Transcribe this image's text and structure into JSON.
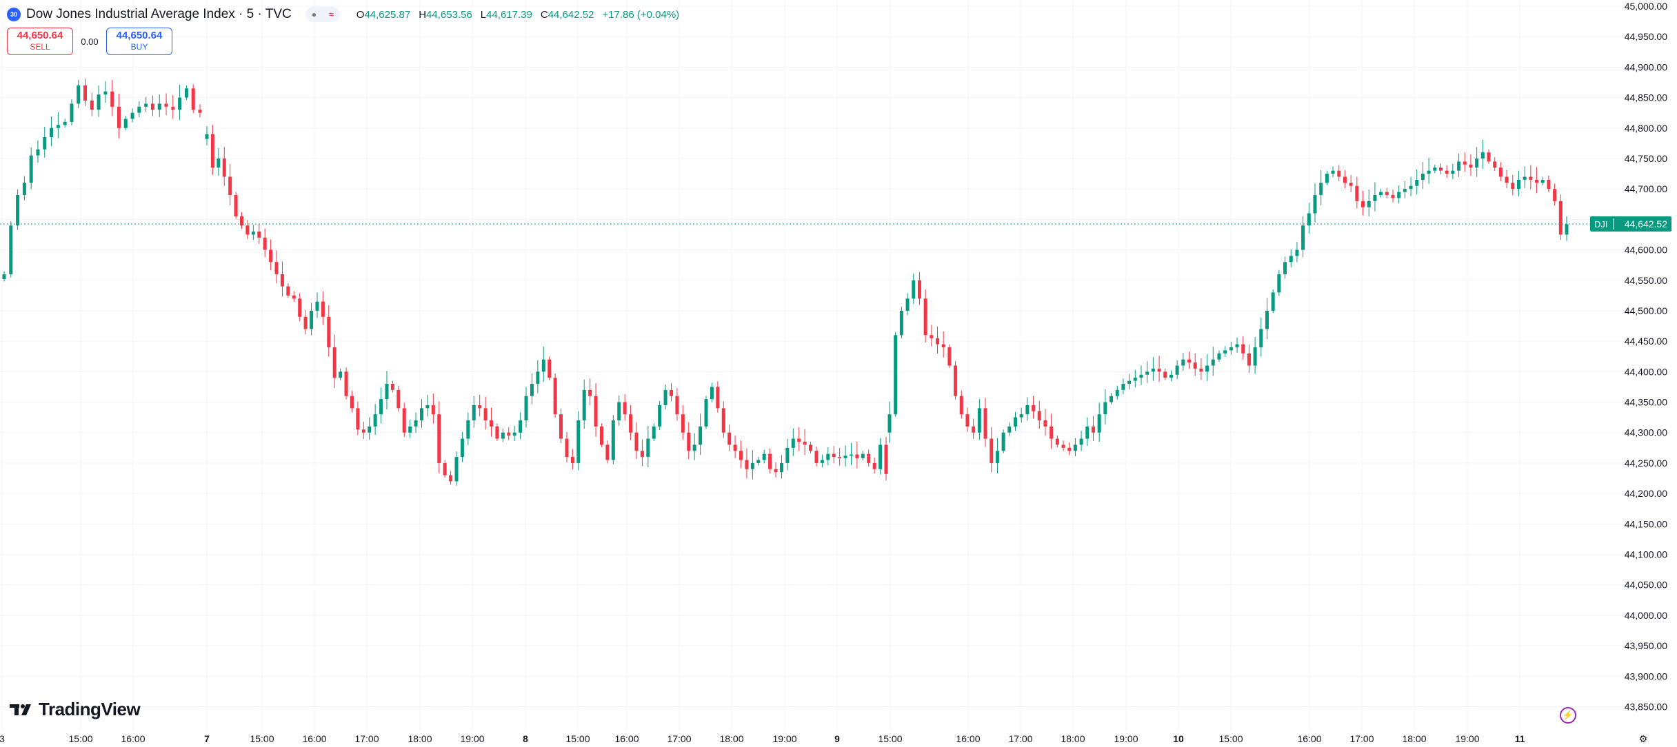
{
  "header": {
    "badge": "30",
    "title": "Dow Jones Industrial Average Index · 5 · TVC",
    "ohlc": {
      "o_label": "O",
      "o": "44,625.87",
      "h_label": "H",
      "h": "44,653.56",
      "l_label": "L",
      "l": "44,617.39",
      "c_label": "C",
      "c": "44,642.52",
      "change": "+17.86 (+0.04%)"
    }
  },
  "trade": {
    "sell_price": "44,650.64",
    "sell_label": "SELL",
    "spread": "0.00",
    "buy_price": "44,650.64",
    "buy_label": "BUY"
  },
  "brand": {
    "name": "TradingView"
  },
  "colors": {
    "up": "#089981",
    "down": "#f23645",
    "last_price": "#089981",
    "grid": "#f0f3fa"
  },
  "chart_data": {
    "type": "candlestick",
    "symbol_tag": "DJI",
    "last_price": 44642.52,
    "ylim": [
      43820,
      45000
    ],
    "y_ticks": [
      "45,000.00",
      "44,950.00",
      "44,900.00",
      "44,850.00",
      "44,800.00",
      "44,750.00",
      "44,700.00",
      "44,650.00",
      "44,600.00",
      "44,550.00",
      "44,500.00",
      "44,450.00",
      "44,400.00",
      "44,350.00",
      "44,300.00",
      "44,250.00",
      "44,200.00",
      "44,150.00",
      "44,100.00",
      "44,050.00",
      "44,000.00",
      "43,950.00",
      "43,900.00",
      "43,850.00"
    ],
    "x_ticks": [
      "3",
      "15:00",
      "16:00",
      "7",
      "15:00",
      "16:00",
      "17:00",
      "18:00",
      "19:00",
      "8",
      "15:00",
      "16:00",
      "17:00",
      "18:00",
      "19:00",
      "9",
      "15:00",
      "16:00",
      "17:00",
      "18:00",
      "19:00",
      "10",
      "15:00",
      "16:00",
      "17:00",
      "18:00",
      "19:00",
      "11"
    ],
    "x_tick_bold": [
      false,
      false,
      false,
      true,
      false,
      false,
      false,
      false,
      false,
      true,
      false,
      false,
      false,
      false,
      false,
      true,
      false,
      false,
      false,
      false,
      false,
      true,
      false,
      false,
      false,
      false,
      false,
      true
    ],
    "grid": true,
    "closes": [
      [
        44560,
        44640,
        44690,
        44710,
        44755,
        44765,
        44785,
        44800,
        44805,
        44810,
        44840,
        44870,
        44845,
        44830,
        44855,
        44860,
        44835,
        44800,
        44815,
        44825,
        44835,
        44840,
        44830,
        44840,
        44835,
        44830,
        44850,
        44865,
        44830,
        44825
      ],
      [
        44790,
        44735,
        44750,
        44720,
        44690,
        44655,
        44640,
        44625,
        44630,
        44620,
        44600,
        44580,
        44560,
        44540,
        44525,
        44520,
        44490,
        44470,
        44500,
        44515,
        44490,
        44440,
        44390,
        44400,
        44360,
        44340,
        44305,
        44300,
        44310,
        44330,
        44355,
        44380,
        44370,
        44340,
        44300,
        44310,
        44320,
        44340,
        44345,
        44330,
        44250,
        44230,
        44220,
        44260,
        44290,
        44320,
        44345,
        44340,
        44320,
        44310,
        44290,
        44300,
        44295,
        44300,
        44320,
        44360,
        44380,
        44400,
        44420,
        44390,
        44330,
        44290,
        44260,
        44250,
        44320,
        44370,
        44360,
        44310,
        44280,
        44255,
        44320,
        44350,
        44330,
        44300,
        44270,
        44260,
        44290,
        44310,
        44345,
        44370,
        44360,
        44330,
        44300,
        44270,
        44280,
        44310,
        44355,
        44375,
        44340,
        44300,
        44280,
        44270,
        44255,
        44240,
        44250,
        44255,
        44265,
        44240,
        44235,
        44250,
        44275,
        44290,
        44285,
        44280,
        44270,
        44250,
        44255,
        44265,
        44260,
        44258,
        44262,
        44264,
        44258,
        44265,
        44250,
        44240,
        44280,
        44232
      ],
      [
        44330,
        44460,
        44500,
        44520,
        44550,
        44520,
        44460,
        44455,
        44445,
        44440,
        44410,
        44360,
        44330,
        44310,
        44300,
        44340,
        44290,
        44250,
        44270,
        44300,
        44310,
        44325,
        44330,
        44345,
        44335,
        44320,
        44310,
        44290,
        44280,
        44275,
        44270,
        44280,
        44290,
        44310,
        44300,
        44330,
        44350,
        44360,
        44370,
        44380,
        44385,
        44390,
        44395,
        44400,
        44405,
        44400,
        44390,
        44395,
        44410,
        44420,
        44415,
        44405,
        44400,
        44410,
        44420,
        44430,
        44435,
        44440,
        44445,
        44430,
        44410,
        44440,
        44470,
        44500,
        44530,
        44560,
        44580,
        44590,
        44600,
        44640,
        44660,
        44690,
        44710,
        44725,
        44730,
        44720,
        44710,
        44705,
        44680,
        44670,
        44680,
        44690,
        44695,
        44690,
        44685,
        44695,
        44700,
        44705,
        44715,
        44725,
        44730,
        44735,
        44730,
        44725,
        44730,
        44745,
        44740,
        44735,
        44750,
        44760,
        44745,
        44735,
        44720,
        44710,
        44700,
        44715,
        44720,
        44715,
        44710,
        44715,
        44700,
        44680,
        44625,
        44642
      ]
    ]
  }
}
